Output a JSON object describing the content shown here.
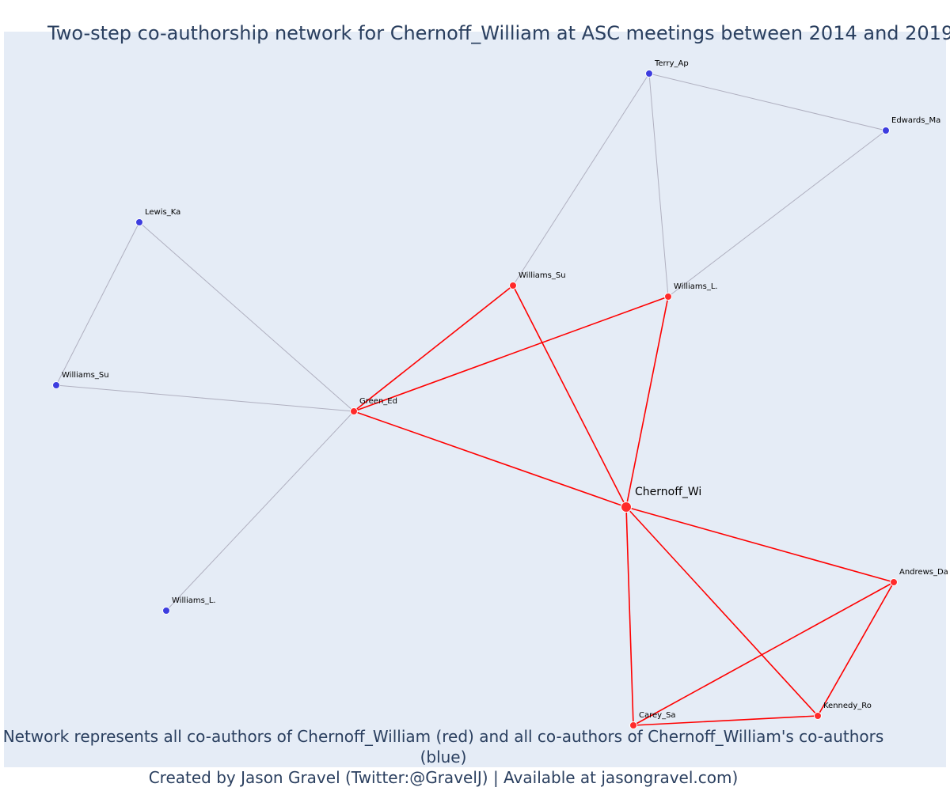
{
  "title": "Two-step co-authorship network for Chernoff_William at ASC meetings between 2014 and 2019",
  "caption": {
    "line1": "Network represents all co-authors of Chernoff_William (red) and all co-authors of Chernoff_William's co-authors (blue)",
    "line2": "Created by Jason Gravel (Twitter:@GravelJ) | Available at jasongravel.com)"
  },
  "colors": {
    "plot_bg": "#e5ecf6",
    "direct_node": "#ff2b2b",
    "indirect_node": "#3d3ddf",
    "direct_edge": "#ff0000",
    "indirect_edge": "#b0b0c0",
    "text": "#2a3f5f"
  },
  "nodes": [
    {
      "id": "chernoff",
      "label": "Chernoff_Wi",
      "group": "focal"
    },
    {
      "id": "green",
      "label": "Green_Ed",
      "group": "direct"
    },
    {
      "id": "williams_su_r",
      "label": "Williams_Su",
      "group": "direct"
    },
    {
      "id": "williams_l_r",
      "label": "Williams_L.",
      "group": "direct"
    },
    {
      "id": "andrews",
      "label": "Andrews_Da",
      "group": "direct"
    },
    {
      "id": "kennedy",
      "label": "Kennedy_Ro",
      "group": "direct"
    },
    {
      "id": "carey",
      "label": "Carey_Sa",
      "group": "direct"
    },
    {
      "id": "terry",
      "label": "Terry_Ap",
      "group": "indirect"
    },
    {
      "id": "edwards",
      "label": "Edwards_Ma",
      "group": "indirect"
    },
    {
      "id": "lewis",
      "label": "Lewis_Ka",
      "group": "indirect"
    },
    {
      "id": "williams_su_b",
      "label": "Williams_Su",
      "group": "indirect"
    },
    {
      "id": "williams_l_b",
      "label": "Williams_L.",
      "group": "indirect"
    }
  ],
  "edges": [
    {
      "source": "chernoff",
      "target": "green",
      "type": "direct"
    },
    {
      "source": "chernoff",
      "target": "williams_su_r",
      "type": "direct"
    },
    {
      "source": "chernoff",
      "target": "williams_l_r",
      "type": "direct"
    },
    {
      "source": "chernoff",
      "target": "andrews",
      "type": "direct"
    },
    {
      "source": "chernoff",
      "target": "kennedy",
      "type": "direct"
    },
    {
      "source": "chernoff",
      "target": "carey",
      "type": "direct"
    },
    {
      "source": "green",
      "target": "williams_su_r",
      "type": "direct"
    },
    {
      "source": "green",
      "target": "williams_l_r",
      "type": "direct"
    },
    {
      "source": "andrews",
      "target": "carey",
      "type": "direct"
    },
    {
      "source": "andrews",
      "target": "kennedy",
      "type": "direct"
    },
    {
      "source": "carey",
      "target": "kennedy",
      "type": "direct"
    },
    {
      "source": "terry",
      "target": "edwards",
      "type": "indirect"
    },
    {
      "source": "terry",
      "target": "williams_su_r",
      "type": "indirect"
    },
    {
      "source": "terry",
      "target": "williams_l_r",
      "type": "indirect"
    },
    {
      "source": "edwards",
      "target": "williams_l_r",
      "type": "indirect"
    },
    {
      "source": "lewis",
      "target": "williams_su_b",
      "type": "indirect"
    },
    {
      "source": "lewis",
      "target": "green",
      "type": "indirect"
    },
    {
      "source": "williams_su_b",
      "target": "green",
      "type": "indirect"
    },
    {
      "source": "williams_l_b",
      "target": "green",
      "type": "indirect"
    }
  ]
}
